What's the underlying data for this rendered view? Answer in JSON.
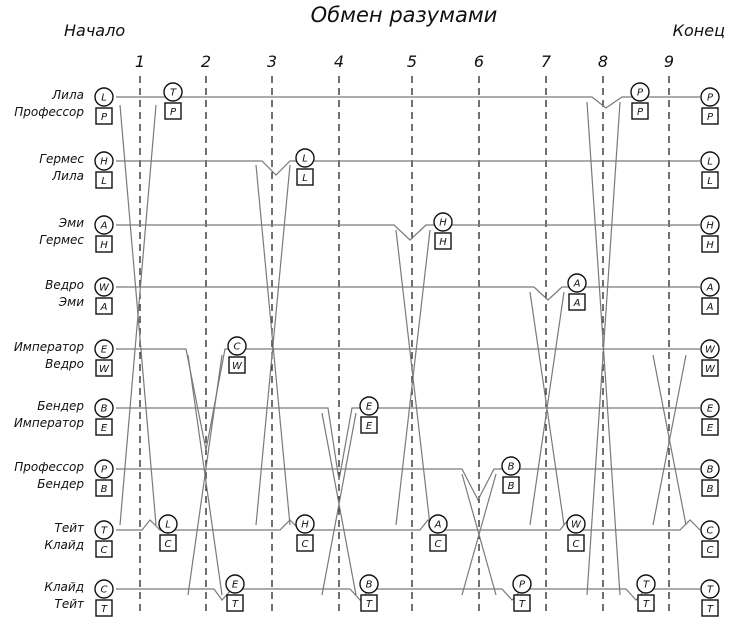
{
  "title": "Обмен разумами",
  "start_label": "Начало",
  "end_label": "Конец",
  "steps": [
    "1",
    "2",
    "3",
    "4",
    "5",
    "6",
    "7",
    "8",
    "9"
  ],
  "rows": [
    {
      "mind": "Лила",
      "body": "Профессор",
      "mind_letter": "L",
      "body_letter": "P",
      "end_mind": "P"
    },
    {
      "mind": "Гермес",
      "body": "Лила",
      "mind_letter": "H",
      "body_letter": "L",
      "end_mind": "L"
    },
    {
      "mind": "Эми",
      "body": "Гермес",
      "mind_letter": "A",
      "body_letter": "H",
      "end_mind": "H"
    },
    {
      "mind": "Ведро",
      "body": "Эми",
      "mind_letter": "W",
      "body_letter": "A",
      "end_mind": "A"
    },
    {
      "mind": "Император",
      "body": "Ведро",
      "mind_letter": "E",
      "body_letter": "W",
      "end_mind": "W"
    },
    {
      "mind": "Бендер",
      "body": "Император",
      "mind_letter": "B",
      "body_letter": "E",
      "end_mind": "E"
    },
    {
      "mind": "Профессор",
      "body": "Бендер",
      "mind_letter": "P",
      "body_letter": "B",
      "end_mind": "B"
    },
    {
      "mind": "Тейт",
      "body": "Клайд",
      "mind_letter": "T",
      "body_letter": "C",
      "end_mind": "C"
    },
    {
      "mind": "Клайд",
      "body": "Тейт",
      "mind_letter": "C",
      "body_letter": "T",
      "end_mind": "T"
    }
  ],
  "swaps": [
    {
      "step": "1",
      "bodies": [
        "P",
        "C"
      ]
    },
    {
      "step": "2",
      "bodies": [
        "W",
        "T"
      ]
    },
    {
      "step": "3",
      "bodies": [
        "L",
        "C"
      ]
    },
    {
      "step": "4",
      "bodies": [
        "E",
        "T"
      ]
    },
    {
      "step": "5",
      "bodies": [
        "H",
        "C"
      ]
    },
    {
      "step": "6",
      "bodies": [
        "B",
        "T"
      ]
    },
    {
      "step": "7",
      "bodies": [
        "A",
        "C"
      ]
    },
    {
      "step": "8",
      "bodies": [
        "P",
        "T"
      ]
    },
    {
      "step": "9",
      "bodies": [
        "W",
        "C"
      ]
    }
  ],
  "intermediate_tokens": [
    {
      "mind": "T",
      "body": "P"
    },
    {
      "mind": "L",
      "body": "C"
    },
    {
      "mind": "C",
      "body": "W"
    },
    {
      "mind": "E",
      "body": "T"
    },
    {
      "mind": "L",
      "body": "L"
    },
    {
      "mind": "H",
      "body": "C"
    },
    {
      "mind": "E",
      "body": "E"
    },
    {
      "mind": "B",
      "body": "T"
    },
    {
      "mind": "H",
      "body": "H"
    },
    {
      "mind": "A",
      "body": "C"
    },
    {
      "mind": "B",
      "body": "B"
    },
    {
      "mind": "P",
      "body": "T"
    },
    {
      "mind": "A",
      "body": "A"
    },
    {
      "mind": "W",
      "body": "C"
    },
    {
      "mind": "P",
      "body": "P"
    },
    {
      "mind": "T",
      "body": "T"
    }
  ]
}
